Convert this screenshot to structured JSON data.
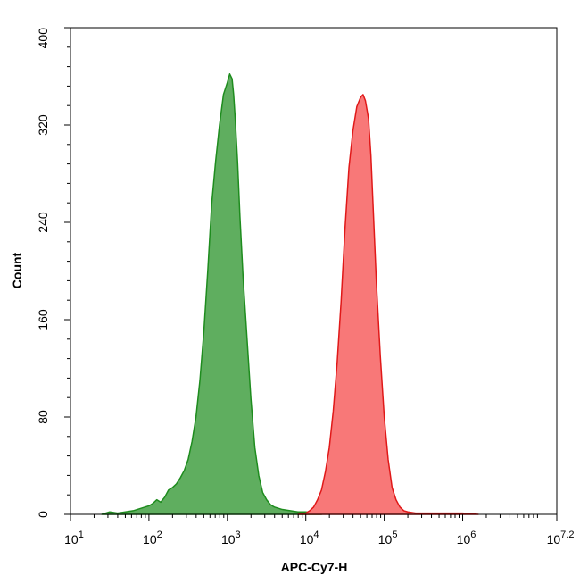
{
  "chart_data": {
    "type": "area",
    "title": "",
    "xlabel": "APC-Cy7-H",
    "ylabel": "Count",
    "x_scale": "log10",
    "xlim": [
      1,
      7.2
    ],
    "ylim": [
      0,
      400
    ],
    "x_ticks": [
      {
        "value": 1,
        "base": "10",
        "exp": "1"
      },
      {
        "value": 2,
        "base": "10",
        "exp": "2"
      },
      {
        "value": 3,
        "base": "10",
        "exp": "3"
      },
      {
        "value": 4,
        "base": "10",
        "exp": "4"
      },
      {
        "value": 5,
        "base": "10",
        "exp": "5"
      },
      {
        "value": 6,
        "base": "10",
        "exp": "6"
      },
      {
        "value": 7.2,
        "base": "10",
        "exp": "7.2"
      }
    ],
    "y_ticks": [
      "0",
      "80",
      "160",
      "240",
      "320",
      "400"
    ],
    "grid": false,
    "legend": "none",
    "series": [
      {
        "fill": "#5fae5f",
        "stroke": "#1e8c1e",
        "log_x": [
          1.4,
          1.5,
          1.6,
          1.7,
          1.8,
          1.9,
          2.0,
          2.05,
          2.1,
          2.15,
          2.2,
          2.25,
          2.3,
          2.35,
          2.4,
          2.45,
          2.5,
          2.55,
          2.6,
          2.65,
          2.7,
          2.75,
          2.8,
          2.85,
          2.9,
          2.95,
          3.0,
          3.03,
          3.06,
          3.08,
          3.1,
          3.13,
          3.16,
          3.2,
          3.25,
          3.3,
          3.35,
          3.4,
          3.45,
          3.5,
          3.55,
          3.6,
          3.7,
          3.8,
          3.9,
          4.0,
          4.1,
          4.2
        ],
        "counts": [
          0,
          2,
          1,
          2,
          3,
          5,
          7,
          9,
          12,
          10,
          14,
          20,
          22,
          25,
          30,
          36,
          45,
          60,
          80,
          110,
          150,
          200,
          255,
          290,
          320,
          345,
          355,
          362,
          358,
          345,
          325,
          290,
          245,
          195,
          145,
          95,
          55,
          32,
          18,
          12,
          8,
          6,
          4,
          3,
          2,
          2,
          1,
          0
        ]
      },
      {
        "fill": "#f87878",
        "stroke": "#e01818",
        "log_x": [
          3.9,
          4.0,
          4.05,
          4.1,
          4.15,
          4.2,
          4.25,
          4.3,
          4.35,
          4.4,
          4.45,
          4.5,
          4.55,
          4.6,
          4.65,
          4.7,
          4.73,
          4.76,
          4.8,
          4.83,
          4.86,
          4.9,
          4.95,
          5.0,
          5.05,
          5.1,
          5.15,
          5.2,
          5.25,
          5.3,
          5.4,
          5.5,
          5.6,
          5.8,
          6.0,
          6.2
        ],
        "counts": [
          0,
          1,
          3,
          6,
          12,
          20,
          35,
          55,
          85,
          125,
          175,
          235,
          285,
          315,
          335,
          343,
          345,
          340,
          325,
          295,
          250,
          190,
          130,
          80,
          45,
          22,
          12,
          6,
          3,
          2,
          1,
          1,
          1,
          1,
          1,
          0
        ]
      }
    ]
  }
}
